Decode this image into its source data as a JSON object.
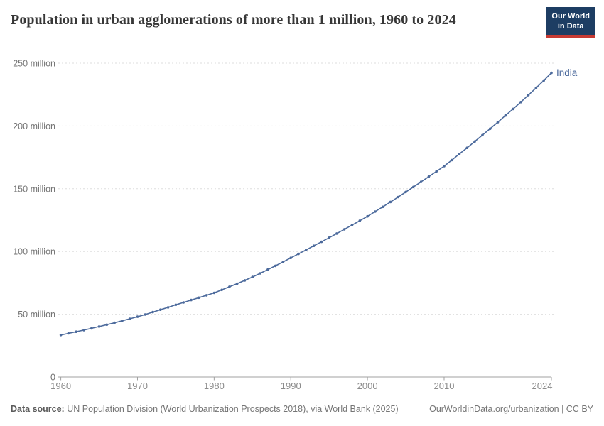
{
  "header": {
    "title": "Population in urban agglomerations of more than 1 million, 1960 to 2024",
    "logo": {
      "line1": "Our World",
      "line2": "in Data"
    }
  },
  "colors": {
    "series_blue": "#4c6a9c",
    "logo_navy": "#1d3d63",
    "logo_red": "#c73a33",
    "gridline": "#dedede",
    "axis": "#a0a0a0",
    "tick_label": "#8c8c8c",
    "y_label": "#737373"
  },
  "chart_data": {
    "type": "line",
    "title": "Population in urban agglomerations of more than 1 million, 1960 to 2024",
    "xlabel": "",
    "ylabel": "",
    "unit": "million people",
    "grid": "horizontal-dashed",
    "legend_position": "end-of-line-label",
    "xlim": [
      1959.7,
      2024
    ],
    "ylim": [
      0,
      250
    ],
    "x_ticks": [
      1960,
      1970,
      1980,
      1990,
      2000,
      2010,
      2024
    ],
    "y_ticks": [
      {
        "value": 0,
        "label": "0"
      },
      {
        "value": 50,
        "label": "50 million"
      },
      {
        "value": 100,
        "label": "100 million"
      },
      {
        "value": 150,
        "label": "150 million"
      },
      {
        "value": 200,
        "label": "200 million"
      },
      {
        "value": 250,
        "label": "250 million"
      }
    ],
    "series": [
      {
        "name": "India",
        "color": "#4c6a9c",
        "x": [
          1960,
          1961,
          1962,
          1963,
          1964,
          1965,
          1966,
          1967,
          1968,
          1969,
          1970,
          1971,
          1972,
          1973,
          1974,
          1975,
          1976,
          1977,
          1978,
          1979,
          1980,
          1981,
          1982,
          1983,
          1984,
          1985,
          1986,
          1987,
          1988,
          1989,
          1990,
          1991,
          1992,
          1993,
          1994,
          1995,
          1996,
          1997,
          1998,
          1999,
          2000,
          2001,
          2002,
          2003,
          2004,
          2005,
          2006,
          2007,
          2008,
          2009,
          2010,
          2011,
          2012,
          2013,
          2014,
          2015,
          2016,
          2017,
          2018,
          2019,
          2020,
          2021,
          2022,
          2023,
          2024
        ],
        "values": [
          33.5,
          34.8,
          36.1,
          37.4,
          38.8,
          40.2,
          41.7,
          43.2,
          44.8,
          46.4,
          48.0,
          49.8,
          51.7,
          53.6,
          55.5,
          57.5,
          59.4,
          61.3,
          63.2,
          65.1,
          67.0,
          69.4,
          71.9,
          74.4,
          77.0,
          79.7,
          82.6,
          85.6,
          88.6,
          91.7,
          94.9,
          98.1,
          101.3,
          104.5,
          107.7,
          111.0,
          114.3,
          117.7,
          121.1,
          124.5,
          128.0,
          131.8,
          135.6,
          139.5,
          143.4,
          147.4,
          151.4,
          155.5,
          159.6,
          163.8,
          168.0,
          172.8,
          177.7,
          182.6,
          187.6,
          192.7,
          197.8,
          203.0,
          208.3,
          213.6,
          219.0,
          224.6,
          230.3,
          236.2,
          242.3
        ]
      }
    ]
  },
  "footer": {
    "source_label": "Data source:",
    "source_text": " UN Population Division (World Urbanization Prospects 2018), via World Bank (2025)",
    "link_text": "OurWorldinData.org/urbanization | CC BY"
  }
}
